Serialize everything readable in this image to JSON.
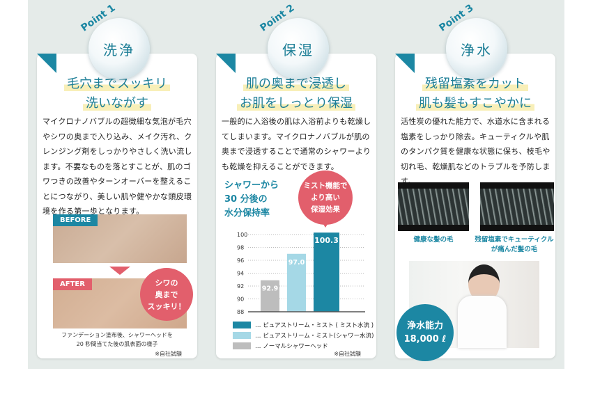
{
  "points": [
    {
      "label": "Point 1",
      "title": "洗浄",
      "heading": [
        "毛穴までスッキリ",
        "洗いながす"
      ],
      "body": "マイクロナノバブルの超微細な気泡が毛穴やシワの奥まで入り込み、メイク汚れ、クレンジング剤をしっかりやさしく洗い流します。不要なものを落とすことが、肌のゴワつきの改善やターンオーバーを整えることにつながり、美しい肌や健やかな頭皮環境を作る第一歩となります。",
      "before_label": "BEFORE",
      "after_label": "AFTER",
      "balloon": [
        "シワの",
        "奥まで",
        "スッキリ！"
      ],
      "caption": [
        "ファンデーション塗布後、シャワーヘッドを",
        "20 秒間当てた後の肌表面の様子"
      ],
      "note": "※自社試験"
    },
    {
      "label": "Point 2",
      "title": "保湿",
      "heading": [
        "肌の奥まで浸透し",
        "お肌をしっとり保湿"
      ],
      "body": "一般的に入浴後の肌は入浴前よりも乾燥してしまいます。マイクロナノバブルが肌の奥まで浸透することで通常のシャワーよりも乾燥を抑えることができます。",
      "chart_heading": [
        "シャワーから",
        "30 分後の",
        "水分保持率"
      ],
      "balloon": [
        "ミスト機能で",
        "より高い",
        "保湿効果"
      ],
      "note": "※自社試験"
    },
    {
      "label": "Point 3",
      "title": "浄水",
      "heading": [
        "残留塩素をカット",
        "肌も髪もすこやかに"
      ],
      "body": "活性炭の優れた能力で、水道水に含まれる塩素をしっかり除去。キューティクルや肌のタンパク質を健康な状態に保ち、枝毛や切れ毛、乾燥肌などのトラブルを予防します。",
      "hair_captions": [
        [
          "健康な髪の毛"
        ],
        [
          "残留塩素でキューティクル",
          "が痛んだ髪の毛"
        ]
      ],
      "badge": [
        "浄水能力",
        "18,000 ℓ"
      ]
    }
  ],
  "colors": {
    "teal": "#1c87a3",
    "light_blue": "#a5d8e6",
    "gray": "#bdbdbd",
    "pink": "#e25f6c",
    "highlight": "#f8efb8"
  },
  "chart_data": {
    "type": "bar",
    "categories": [
      "ノーマルシャワーヘッド",
      "ピュアストリーム・ミスト(シャワー水流)",
      "ピュアストリーム・ミスト ( ミスト水流 )"
    ],
    "values": [
      92.9,
      97.0,
      100.3
    ],
    "value_labels": [
      "92.9",
      "97.0",
      "100.3"
    ],
    "colors": [
      "#bdbdbd",
      "#a5d8e6",
      "#1c87a3"
    ],
    "ylim": [
      88,
      100
    ],
    "yticks": [
      "88",
      "90",
      "92",
      "94",
      "96",
      "98",
      "100"
    ],
    "grid": true,
    "legend": [
      "… ピュアストリーム・ミスト ( ミスト水流 )",
      "… ピュアストリーム・ミスト(シャワー水流)",
      "… ノーマルシャワーヘッド"
    ],
    "legend_position": "bottom"
  }
}
